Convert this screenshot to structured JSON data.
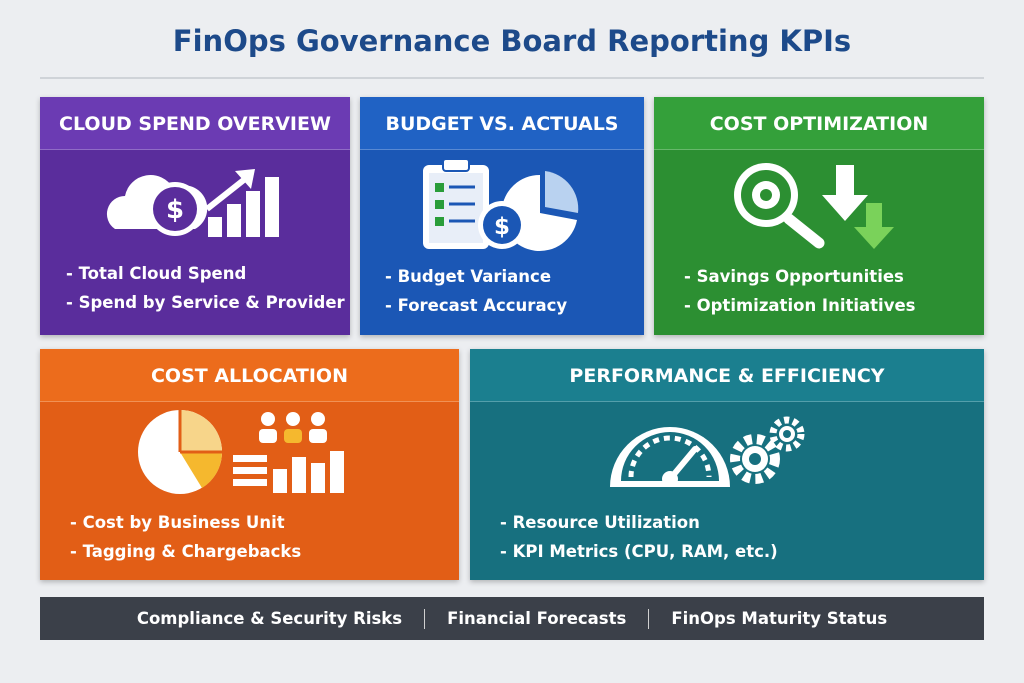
{
  "header": {
    "title": "FinOps Governance Board Reporting KPIs"
  },
  "cards": [
    {
      "title": "CLOUD SPEND OVERVIEW",
      "items": [
        "- Total Cloud Spend",
        "- Spend by Service & Provider"
      ]
    },
    {
      "title": "BUDGET VS. ACTUALS",
      "items": [
        "- Budget Variance",
        "- Forecast Accuracy"
      ]
    },
    {
      "title": "COST OPTIMIZATION",
      "items": [
        "- Savings Opportunities",
        "- Optimization Initiatives"
      ]
    },
    {
      "title": "COST ALLOCATION",
      "items": [
        "- Cost by Business Unit",
        "- Tagging & Chargebacks"
      ]
    },
    {
      "title": "PERFORMANCE & EFFICIENCY",
      "items": [
        "- Resource Utilization",
        "- KPI Metrics (CPU, RAM, etc.)"
      ]
    }
  ],
  "footer": {
    "items": [
      "Compliance & Security Risks",
      "Financial Forecasts",
      "FinOps Maturity Status"
    ]
  }
}
